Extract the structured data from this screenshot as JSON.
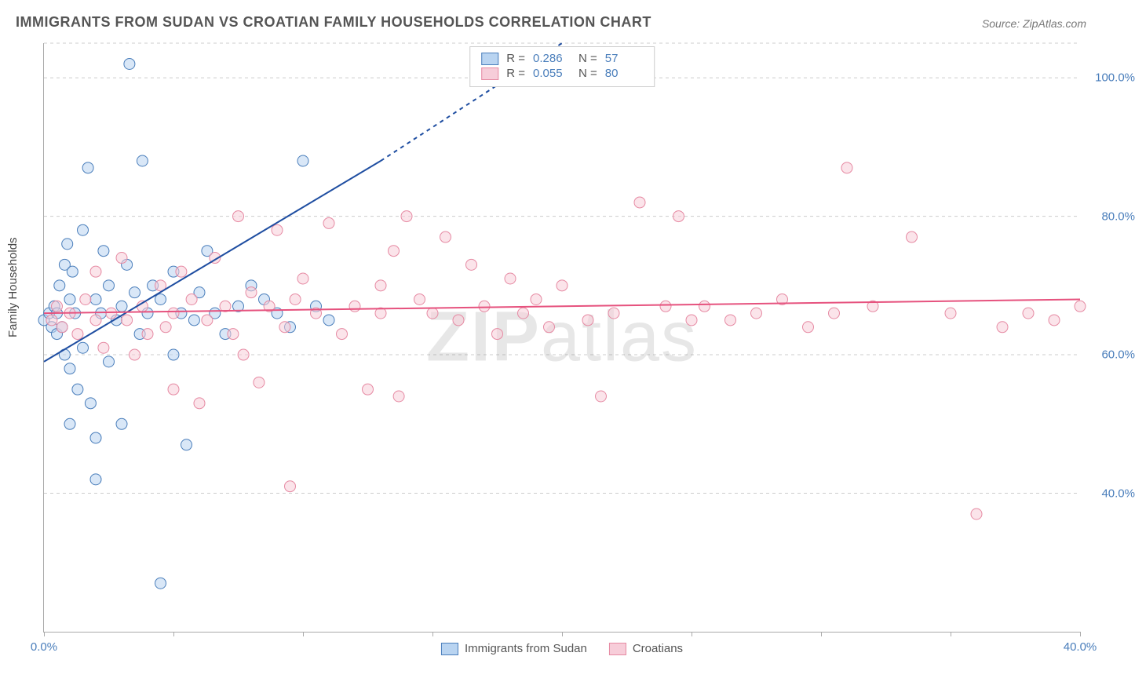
{
  "title": "IMMIGRANTS FROM SUDAN VS CROATIAN FAMILY HOUSEHOLDS CORRELATION CHART",
  "source_label": "Source: ZipAtlas.com",
  "ylabel": "Family Households",
  "watermark_a": "ZIP",
  "watermark_b": "atlas",
  "chart": {
    "type": "scatter",
    "background_color": "#ffffff",
    "grid_color": "#cccccc",
    "axis_color": "#aaaaaa",
    "tick_label_color": "#4a7ebb",
    "title_fontsize": 18,
    "label_fontsize": 15,
    "xlim": [
      0,
      40
    ],
    "ylim": [
      20,
      105
    ],
    "xticks": [
      0,
      5,
      10,
      15,
      20,
      25,
      30,
      35,
      40
    ],
    "xtick_labels_shown": {
      "0": "0.0%",
      "40": "40.0%"
    },
    "yticks": [
      40,
      60,
      80,
      100
    ],
    "ytick_format": "{v}.0%",
    "marker_radius": 7,
    "marker_opacity": 0.55,
    "marker_stroke_width": 1,
    "series": [
      {
        "key": "sudan",
        "label": "Immigrants from Sudan",
        "fill": "#b9d4f1",
        "stroke": "#4a7ebb",
        "R": 0.286,
        "N": 57,
        "trend": {
          "x1": 0,
          "y1": 59,
          "x2_solid": 13,
          "y2_solid": 88,
          "x2_dash": 20,
          "y2_dash": 105,
          "color": "#1f4ea1",
          "width": 2
        },
        "points": [
          [
            0,
            65
          ],
          [
            0.2,
            66
          ],
          [
            0.3,
            64
          ],
          [
            0.4,
            67
          ],
          [
            0.5,
            66
          ],
          [
            0.5,
            63
          ],
          [
            0.6,
            70
          ],
          [
            0.7,
            64
          ],
          [
            0.8,
            73
          ],
          [
            0.8,
            60
          ],
          [
            0.9,
            76
          ],
          [
            1.0,
            68
          ],
          [
            1.0,
            58
          ],
          [
            1.0,
            50
          ],
          [
            1.1,
            72
          ],
          [
            1.2,
            66
          ],
          [
            1.3,
            55
          ],
          [
            1.5,
            78
          ],
          [
            1.5,
            61
          ],
          [
            1.7,
            87
          ],
          [
            1.8,
            53
          ],
          [
            2.0,
            68
          ],
          [
            2.0,
            48
          ],
          [
            2.0,
            42
          ],
          [
            2.2,
            66
          ],
          [
            2.3,
            75
          ],
          [
            2.5,
            70
          ],
          [
            2.5,
            59
          ],
          [
            2.8,
            65
          ],
          [
            3.0,
            67
          ],
          [
            3.0,
            50
          ],
          [
            3.2,
            73
          ],
          [
            3.3,
            102
          ],
          [
            3.5,
            69
          ],
          [
            3.7,
            63
          ],
          [
            3.8,
            88
          ],
          [
            4.0,
            66
          ],
          [
            4.2,
            70
          ],
          [
            4.5,
            68
          ],
          [
            4.5,
            27
          ],
          [
            5.0,
            72
          ],
          [
            5.0,
            60
          ],
          [
            5.3,
            66
          ],
          [
            5.5,
            47
          ],
          [
            5.8,
            65
          ],
          [
            6.0,
            69
          ],
          [
            6.3,
            75
          ],
          [
            6.6,
            66
          ],
          [
            7.0,
            63
          ],
          [
            7.5,
            67
          ],
          [
            8.0,
            70
          ],
          [
            8.5,
            68
          ],
          [
            9.0,
            66
          ],
          [
            9.5,
            64
          ],
          [
            10.0,
            88
          ],
          [
            10.5,
            67
          ],
          [
            11.0,
            65
          ]
        ]
      },
      {
        "key": "croatians",
        "label": "Croatians",
        "fill": "#f7cdd9",
        "stroke": "#e68aa3",
        "R": 0.055,
        "N": 80,
        "trend": {
          "x1": 0,
          "y1": 66,
          "x2_solid": 40,
          "y2_solid": 68,
          "color": "#e6527e",
          "width": 2
        },
        "points": [
          [
            0.3,
            65
          ],
          [
            0.5,
            67
          ],
          [
            0.7,
            64
          ],
          [
            1.0,
            66
          ],
          [
            1.3,
            63
          ],
          [
            1.6,
            68
          ],
          [
            2.0,
            72
          ],
          [
            2.0,
            65
          ],
          [
            2.3,
            61
          ],
          [
            2.6,
            66
          ],
          [
            3.0,
            74
          ],
          [
            3.2,
            65
          ],
          [
            3.5,
            60
          ],
          [
            3.8,
            67
          ],
          [
            4.0,
            63
          ],
          [
            4.5,
            70
          ],
          [
            4.7,
            64
          ],
          [
            5.0,
            66
          ],
          [
            5.0,
            55
          ],
          [
            5.3,
            72
          ],
          [
            5.7,
            68
          ],
          [
            6.0,
            53
          ],
          [
            6.3,
            65
          ],
          [
            6.6,
            74
          ],
          [
            7.0,
            67
          ],
          [
            7.3,
            63
          ],
          [
            7.5,
            80
          ],
          [
            7.7,
            60
          ],
          [
            8.0,
            69
          ],
          [
            8.3,
            56
          ],
          [
            8.7,
            67
          ],
          [
            9.0,
            78
          ],
          [
            9.3,
            64
          ],
          [
            9.5,
            41
          ],
          [
            9.7,
            68
          ],
          [
            10.0,
            71
          ],
          [
            10.5,
            66
          ],
          [
            11.0,
            79
          ],
          [
            11.5,
            63
          ],
          [
            12.0,
            67
          ],
          [
            12.5,
            55
          ],
          [
            13.0,
            70
          ],
          [
            13.0,
            66
          ],
          [
            13.5,
            75
          ],
          [
            13.7,
            54
          ],
          [
            14.0,
            80
          ],
          [
            14.5,
            68
          ],
          [
            15.0,
            66
          ],
          [
            15.5,
            77
          ],
          [
            16.0,
            65
          ],
          [
            16.5,
            73
          ],
          [
            17.0,
            67
          ],
          [
            17.5,
            63
          ],
          [
            18.0,
            71
          ],
          [
            18.5,
            66
          ],
          [
            19.0,
            68
          ],
          [
            19.5,
            64
          ],
          [
            20.0,
            70
          ],
          [
            21.0,
            65
          ],
          [
            21.5,
            54
          ],
          [
            22.0,
            66
          ],
          [
            23.0,
            82
          ],
          [
            24.0,
            67
          ],
          [
            24.5,
            80
          ],
          [
            25.0,
            65
          ],
          [
            25.5,
            67
          ],
          [
            26.5,
            65
          ],
          [
            27.5,
            66
          ],
          [
            28.5,
            68
          ],
          [
            29.5,
            64
          ],
          [
            30.5,
            66
          ],
          [
            31.0,
            87
          ],
          [
            32.0,
            67
          ],
          [
            33.5,
            77
          ],
          [
            35.0,
            66
          ],
          [
            36.0,
            37
          ],
          [
            37.0,
            64
          ],
          [
            38.0,
            66
          ],
          [
            39.0,
            65
          ],
          [
            40.0,
            67
          ]
        ]
      }
    ]
  },
  "legend_top_labels": {
    "R": "R =",
    "N": "N ="
  }
}
